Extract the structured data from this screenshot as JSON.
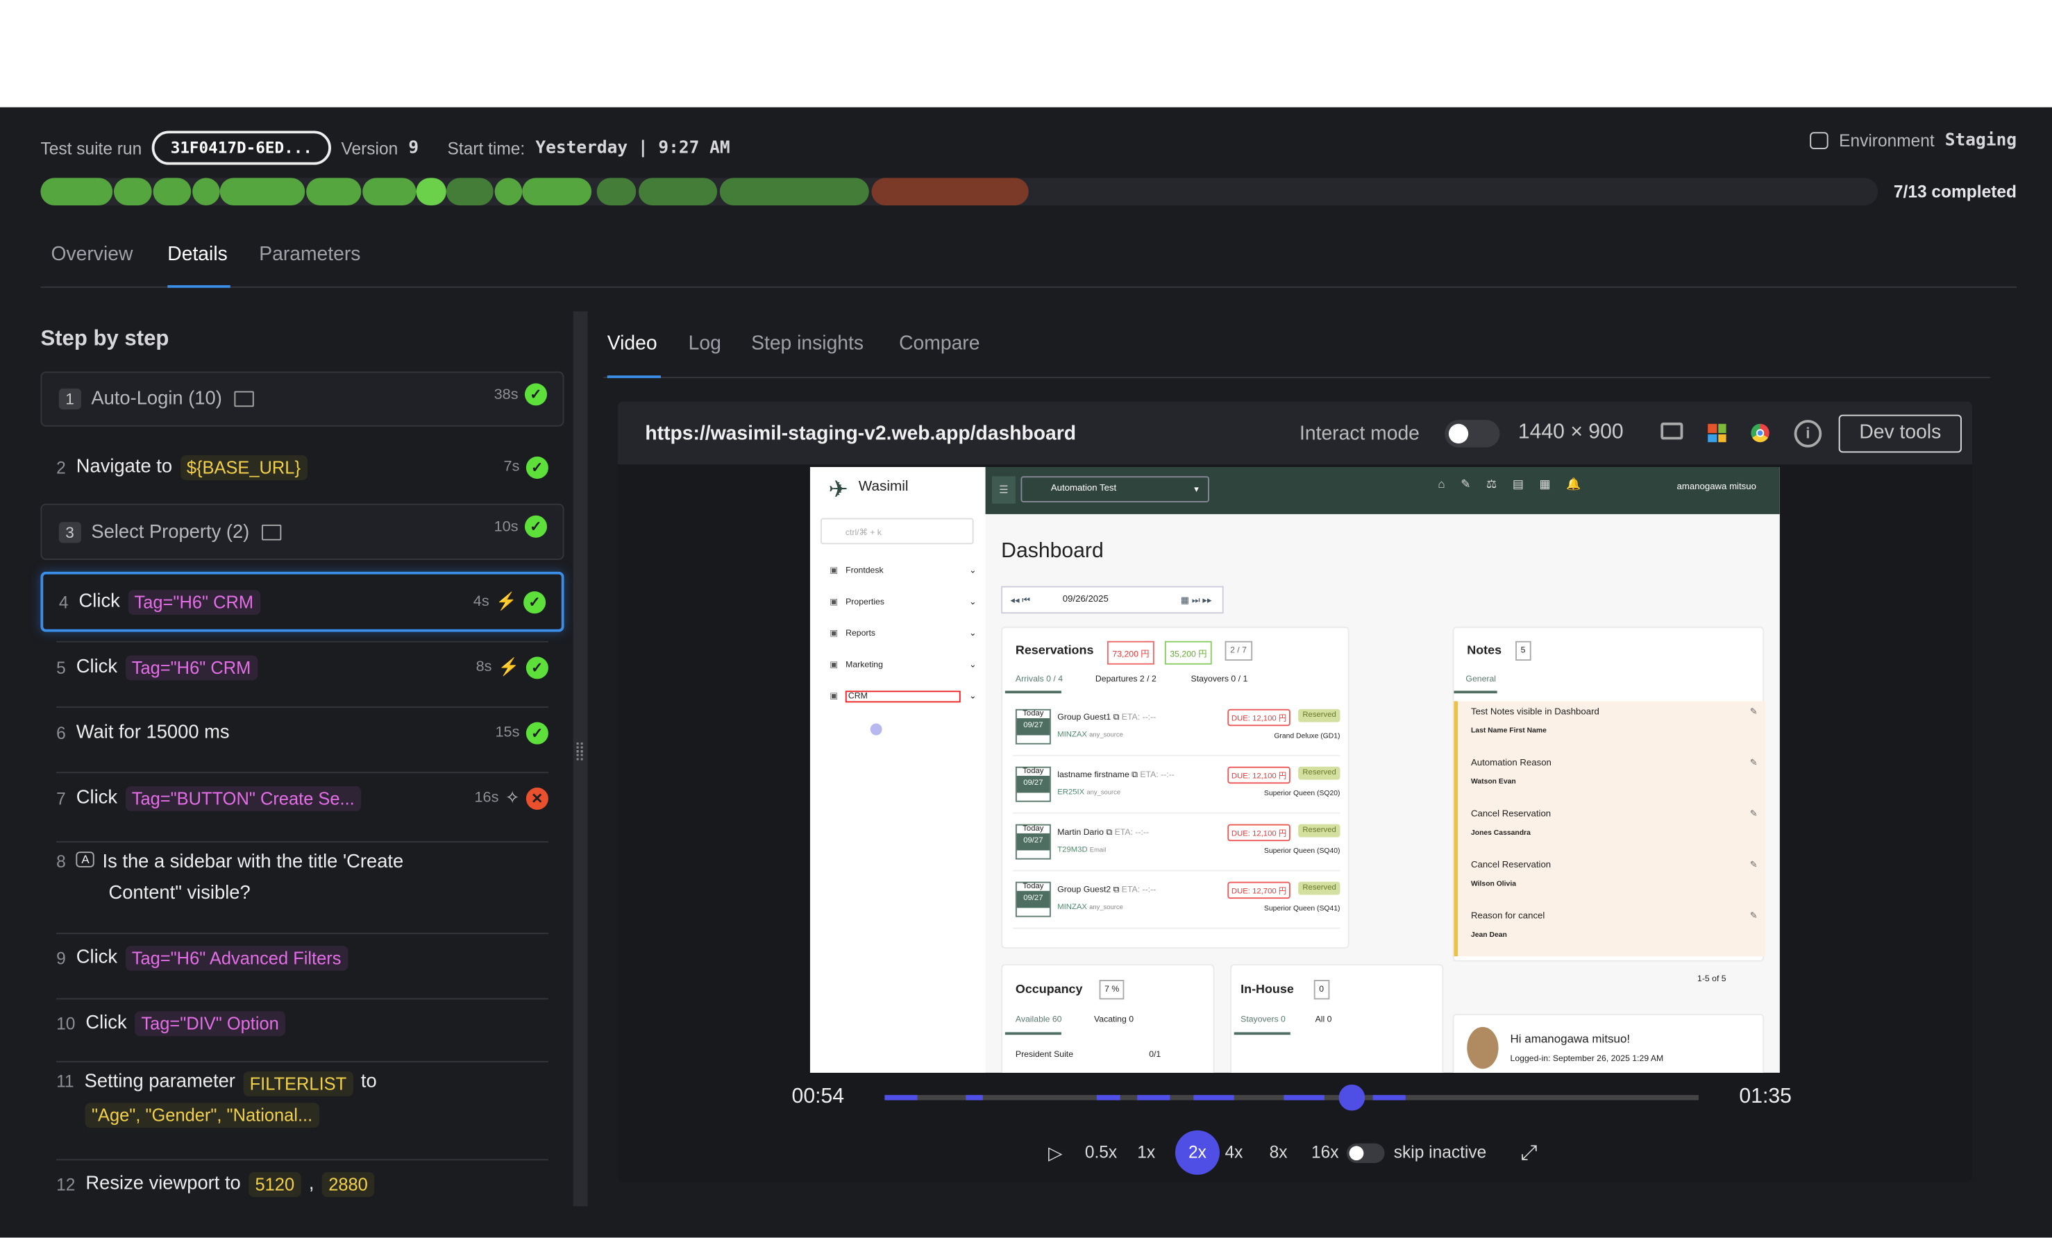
{
  "header": {
    "suite_label": "Test suite run",
    "suite_id": "31F0417D-6ED...",
    "version_label": "Version",
    "version": "9",
    "start_label": "Start time:",
    "start_value": "Yesterday | 9:27 AM",
    "env_label": "Environment",
    "env_value": "Staging",
    "completed": "7/13 completed",
    "progress_segments": [
      "pass",
      "pass",
      "pass",
      "pass",
      "pass",
      "pass",
      "pass",
      "current",
      "pending-pass",
      "pass",
      "pass",
      "pending-pass",
      "pending-pass",
      "pending-pass",
      "fail"
    ]
  },
  "tabs": [
    "Overview",
    "Details",
    "Parameters"
  ],
  "active_tab": "Details",
  "steps_title": "Step by step",
  "steps": [
    {
      "n": "1",
      "text": "Auto-Login (10)",
      "time": "38s",
      "status": "pass",
      "group": true
    },
    {
      "n": "2",
      "text": "Navigate to",
      "tag": "${BASE_URL}",
      "time": "7s",
      "status": "pass"
    },
    {
      "n": "3",
      "text": "Select Property (2)",
      "time": "10s",
      "status": "pass",
      "group": true
    },
    {
      "n": "4",
      "text": "Click",
      "tag": "Tag=\"H6\" CRM",
      "time": "4s",
      "status": "pass",
      "selected": true
    },
    {
      "n": "5",
      "text": "Click",
      "tag": "Tag=\"H6\" CRM",
      "time": "8s",
      "status": "pass"
    },
    {
      "n": "6",
      "text": "Wait for 15000 ms",
      "time": "15s",
      "status": "pass"
    },
    {
      "n": "7",
      "text": "Click",
      "tag": "Tag=\"BUTTON\" Create Se...",
      "time": "16s",
      "status": "fail"
    },
    {
      "n": "8",
      "text": "Is the a sidebar with the title 'Create",
      "text2": "Content\" visible?",
      "badge": "A"
    },
    {
      "n": "9",
      "text": "Click",
      "tag": "Tag=\"H6\" Advanced Filters"
    },
    {
      "n": "10",
      "text": "Click",
      "tag": "Tag=\"DIV\" Option"
    },
    {
      "n": "11",
      "text": "Setting parameter",
      "tag": "FILTERLIST",
      "text_after": "to",
      "tag2": "\"Age\", \"Gender\", \"National..."
    },
    {
      "n": "12",
      "text": "Resize viewport to",
      "tag": "5120",
      "tag2": "2880"
    }
  ],
  "right_tabs": [
    "Video",
    "Log",
    "Step insights",
    "Compare"
  ],
  "active_right_tab": "Video",
  "browser": {
    "url": "https://wasimil-staging-v2.web.app/dashboard",
    "interact_label": "Interact mode",
    "interact_on": false,
    "resolution": "1440 × 900",
    "dev_tools": "Dev tools"
  },
  "player": {
    "current": "00:54",
    "total": "01:35",
    "progress": 0.574,
    "speeds": [
      "0.5x",
      "1x",
      "2x",
      "4x",
      "8x",
      "16x"
    ],
    "active_speed": "2x",
    "skip_inactive": "skip inactive",
    "skip_on": false
  },
  "app": {
    "brand": "Wasimil",
    "search_placeholder": "ctrl/⌘ + k",
    "nav": [
      "Frontdesk",
      "Properties",
      "Reports",
      "Marketing",
      "CRM"
    ],
    "property": "Automation Test",
    "user": "amanogawa mitsuo",
    "title": "Dashboard",
    "date": "09/26/2025",
    "reservations": {
      "title": "Reservations",
      "b1": "73,200 円",
      "b2": "35,200 円",
      "b3": "2 / 7",
      "tabs": [
        "Arrivals 0 / 4",
        "Departures 2 / 2",
        "Stayovers 0 / 1"
      ],
      "rows": [
        {
          "today": "Today",
          "date": "09/27",
          "name": "Group Guest1",
          "eta": "ETA: --:--",
          "code": "MINZAX",
          "source": "any_source",
          "due": "DUE: 12,100 円",
          "status": "Reserved",
          "room": "Grand Deluxe (GD1)"
        },
        {
          "today": "Today",
          "date": "09/27",
          "name": "lastname firstname",
          "eta": "ETA: --:--",
          "code": "ER25IX",
          "source": "any_source",
          "due": "DUE: 12,100 円",
          "status": "Reserved",
          "room": "Superior Queen (SQ20)"
        },
        {
          "today": "Today",
          "date": "09/27",
          "name": "Martin Dario",
          "eta": "ETA: --:--",
          "code": "T29M3D",
          "source": "Email",
          "due": "DUE: 12,100 円",
          "status": "Reserved",
          "room": "Superior Queen (SQ40)"
        },
        {
          "today": "Today",
          "date": "09/27",
          "name": "Group Guest2",
          "eta": "ETA: --:--",
          "code": "MINZAX",
          "source": "any_source",
          "due": "DUE: 12,700 円",
          "status": "Reserved",
          "room": "Superior Queen (SQ41)"
        }
      ]
    },
    "notes": {
      "title": "Notes",
      "count": "5",
      "tab": "General",
      "pager": "1-5 of 5",
      "items": [
        {
          "t": "Test Notes visible in Dashboard",
          "n": "Last Name First Name"
        },
        {
          "t": "Automation Reason",
          "n": "Watson Evan"
        },
        {
          "t": "Cancel Reservation",
          "n": "Jones Cassandra"
        },
        {
          "t": "Cancel Reservation",
          "n": "Wilson Olivia"
        },
        {
          "t": "Reason for cancel",
          "n": "Jean Dean"
        }
      ]
    },
    "occupancy": {
      "title": "Occupancy",
      "badge": "7 %",
      "tabs": [
        "Available  60",
        "Vacating  0"
      ],
      "row": "President Suite",
      "row_val": "0/1"
    },
    "inhouse": {
      "title": "In-House",
      "badge": "0",
      "tabs": [
        "Stayovers  0",
        "All  0"
      ]
    },
    "greeting": "Hi amanogawa mitsuo!",
    "logged": "Logged-in: September 26, 2025 1:29 AM"
  }
}
